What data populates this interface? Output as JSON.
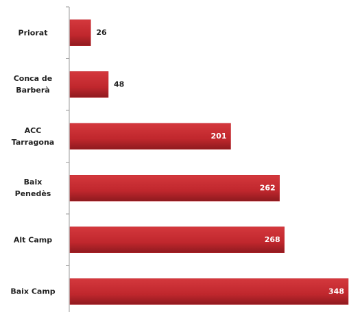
{
  "chart_data": {
    "type": "hbar",
    "categories": [
      "Priorat",
      "Conca de Barberà",
      "ACC Tarragona",
      "Baix Penedès",
      "Alt Camp",
      "Baix Camp"
    ],
    "values": [
      26,
      48,
      201,
      262,
      268,
      348
    ],
    "color": "#c0272d"
  }
}
